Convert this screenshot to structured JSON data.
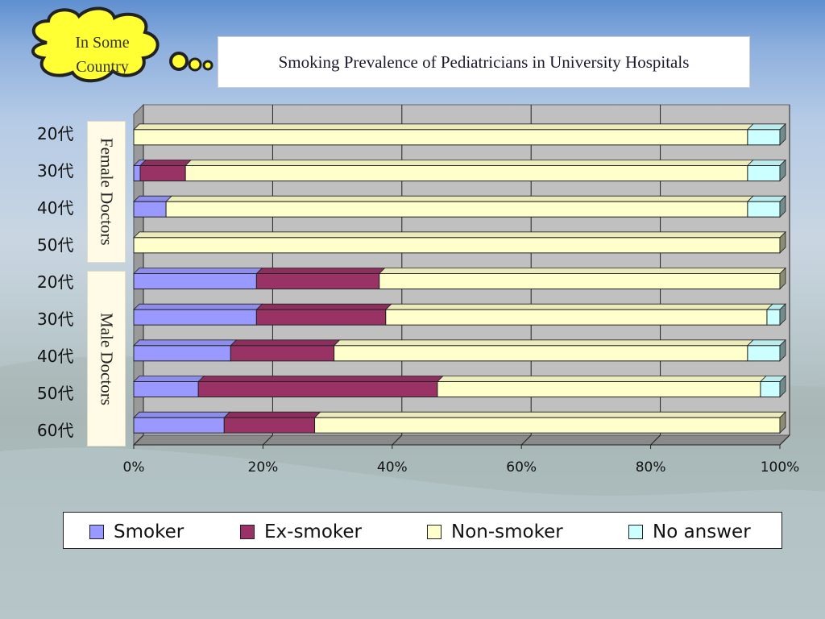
{
  "callout": {
    "line1": "In Some",
    "line2": "Country",
    "icon": "thought-cloud"
  },
  "title": "Smoking Prevalence of Pediatricians in University Hospitals",
  "groups": {
    "female": "Female Doctors",
    "male": "Male Doctors"
  },
  "colors": {
    "Smoker": "#9999ff",
    "Ex-smoker": "#993366",
    "Non-smoker": "#ffffcc",
    "No answer": "#ccffff",
    "plot_bg": "#c0c0c0"
  },
  "chart_data": {
    "type": "bar",
    "orientation": "horizontal",
    "stacked": true,
    "categories": [
      "20代",
      "30代",
      "40代",
      "50代",
      "20代",
      "30代",
      "40代",
      "50代",
      "60代"
    ],
    "series": [
      {
        "name": "Smoker",
        "values": [
          0,
          1,
          5,
          0,
          19,
          19,
          15,
          10,
          14
        ]
      },
      {
        "name": "Ex-smoker",
        "values": [
          0,
          7,
          0,
          0,
          19,
          20,
          16,
          37,
          14
        ]
      },
      {
        "name": "Non-smoker",
        "values": [
          95,
          87,
          90,
          100,
          62,
          59,
          64,
          50,
          72
        ]
      },
      {
        "name": "No answer",
        "values": [
          5,
          5,
          5,
          0,
          0,
          2,
          5,
          3,
          0
        ]
      }
    ],
    "xlim": [
      0,
      100
    ],
    "x_ticks": [
      "0%",
      "20%",
      "40%",
      "60%",
      "80%",
      "100%"
    ],
    "grid": true,
    "legend": "bottom"
  }
}
